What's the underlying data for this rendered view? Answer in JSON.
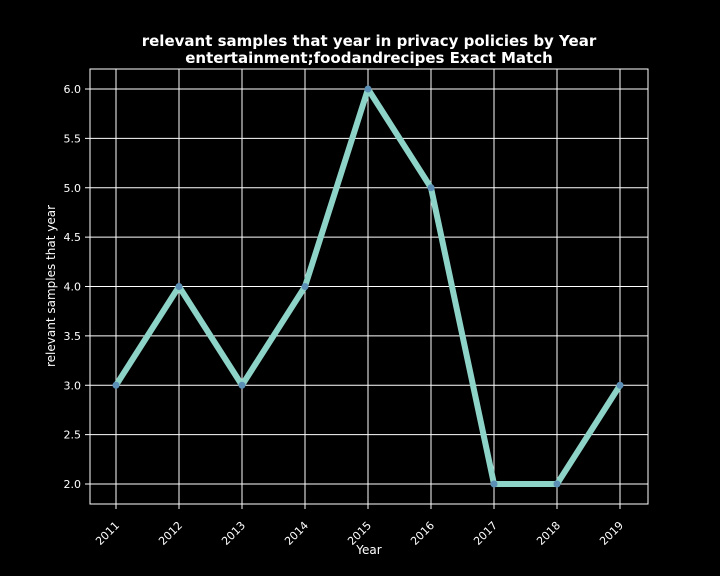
{
  "chart_data": {
    "type": "line",
    "title": "relevant samples that year in privacy policies by Year",
    "subtitle": "entertainment;foodandrecipes Exact Match",
    "xlabel": "Year",
    "ylabel": "relevant samples that year",
    "x": [
      "2011",
      "2012",
      "2013",
      "2014",
      "2015",
      "2016",
      "2017",
      "2018",
      "2019"
    ],
    "values": [
      3,
      4,
      3,
      4,
      6,
      5,
      2,
      2,
      3
    ],
    "yticks": [
      "2.0",
      "2.5",
      "3.0",
      "3.5",
      "4.0",
      "4.5",
      "5.0",
      "5.5",
      "6.0"
    ],
    "ylim": [
      2.0,
      6.0
    ],
    "grid": true,
    "colors": {
      "background": "#000000",
      "line": "#8dd3c7",
      "marker": "#5b8fb5",
      "grid": "#ffffff",
      "text": "#ffffff"
    }
  }
}
